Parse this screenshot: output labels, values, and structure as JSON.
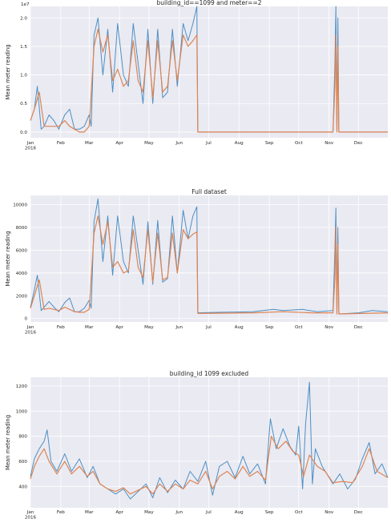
{
  "colors": {
    "background": "#eaeaf2",
    "grid": "#ffffff",
    "series_raw": "#4c8fc4",
    "series_smooth": "#dd8452"
  },
  "chart_data": [
    {
      "type": "line",
      "title": "building_id==1099 and meter==2",
      "ylabel": "Mean meter reading",
      "y_multiplier": "1e7",
      "xlim": [
        "2016-01-01",
        "2016-12-31"
      ],
      "ylim": [
        -0.1,
        2.2
      ],
      "yticks": [
        0.0,
        0.5,
        1.0,
        1.5,
        2.0
      ],
      "ytick_labels": [
        "0.0",
        "0.5",
        "1.0",
        "1.5",
        "2.0"
      ],
      "xtick_labels": [
        "Jan\n2016",
        "Feb",
        "Mar",
        "Apr",
        "May",
        "Jun",
        "Jul",
        "Aug",
        "Sep",
        "Oct",
        "Nov",
        "Dec"
      ],
      "grid": true,
      "series": [
        {
          "role": "raw hourly",
          "color": "#4c8fc4",
          "x": [
            "2016-01-01",
            "2016-01-05",
            "2016-01-08",
            "2016-01-12",
            "2016-01-15",
            "2016-01-20",
            "2016-01-25",
            "2016-01-30",
            "2016-02-05",
            "2016-02-10",
            "2016-02-15",
            "2016-02-20",
            "2016-02-25",
            "2016-03-01",
            "2016-03-03",
            "2016-03-06",
            "2016-03-10",
            "2016-03-15",
            "2016-03-20",
            "2016-03-25",
            "2016-03-30",
            "2016-04-05",
            "2016-04-10",
            "2016-04-15",
            "2016-04-20",
            "2016-04-25",
            "2016-04-30",
            "2016-05-05",
            "2016-05-10",
            "2016-05-15",
            "2016-05-20",
            "2016-05-25",
            "2016-05-30",
            "2016-06-05",
            "2016-06-10",
            "2016-06-15",
            "2016-06-19",
            "2016-06-20",
            "2016-07-15",
            "2016-08-15",
            "2016-09-15",
            "2016-10-15",
            "2016-11-05",
            "2016-11-07",
            "2016-11-08",
            "2016-11-09",
            "2016-11-10",
            "2016-11-11",
            "2016-11-12",
            "2016-12-31"
          ],
          "y": [
            0.2,
            0.4,
            0.8,
            0.05,
            0.1,
            0.3,
            0.2,
            0.05,
            0.3,
            0.4,
            0.05,
            0.05,
            0.1,
            0.3,
            0.1,
            1.7,
            2.0,
            1.0,
            1.8,
            0.7,
            1.9,
            1.0,
            0.8,
            1.9,
            1.2,
            0.5,
            1.8,
            0.5,
            1.8,
            0.6,
            0.7,
            1.8,
            0.8,
            1.9,
            1.6,
            1.9,
            2.2,
            0.0,
            0.0,
            0.0,
            0.0,
            0.0,
            0.0,
            1.2,
            2.2,
            0.0,
            2.0,
            0.0,
            0.0,
            0.0
          ]
        },
        {
          "role": "rolling mean",
          "color": "#dd8452",
          "x": [
            "2016-01-01",
            "2016-01-05",
            "2016-01-10",
            "2016-01-15",
            "2016-01-20",
            "2016-01-25",
            "2016-01-30",
            "2016-02-05",
            "2016-02-10",
            "2016-02-15",
            "2016-02-20",
            "2016-02-25",
            "2016-03-01",
            "2016-03-06",
            "2016-03-10",
            "2016-03-15",
            "2016-03-20",
            "2016-03-25",
            "2016-03-30",
            "2016-04-05",
            "2016-04-10",
            "2016-04-15",
            "2016-04-20",
            "2016-04-25",
            "2016-04-30",
            "2016-05-05",
            "2016-05-10",
            "2016-05-15",
            "2016-05-20",
            "2016-05-25",
            "2016-05-30",
            "2016-06-05",
            "2016-06-10",
            "2016-06-15",
            "2016-06-19",
            "2016-06-20",
            "2016-11-05",
            "2016-11-07",
            "2016-11-08",
            "2016-11-09",
            "2016-11-10",
            "2016-11-11",
            "2016-12-31"
          ],
          "y": [
            0.2,
            0.4,
            0.7,
            0.1,
            0.1,
            0.1,
            0.1,
            0.2,
            0.1,
            0.05,
            0.0,
            0.0,
            0.1,
            1.5,
            1.8,
            1.4,
            1.7,
            0.9,
            1.1,
            0.8,
            0.9,
            1.6,
            0.9,
            0.7,
            1.6,
            0.6,
            1.6,
            0.7,
            0.8,
            1.6,
            0.9,
            1.7,
            1.5,
            1.6,
            1.7,
            0.0,
            0.0,
            0.8,
            1.7,
            0.0,
            1.5,
            0.0,
            0.0
          ]
        }
      ]
    },
    {
      "type": "line",
      "title": "Full dataset",
      "ylabel": "Mean meter reading",
      "xlim": [
        "2016-01-01",
        "2016-12-31"
      ],
      "ylim": [
        -300,
        10800
      ],
      "yticks": [
        0,
        2000,
        4000,
        6000,
        8000,
        10000
      ],
      "ytick_labels": [
        "0",
        "2000",
        "4000",
        "6000",
        "8000",
        "10000"
      ],
      "xtick_labels": [
        "Jan\n2016",
        "Feb",
        "Mar",
        "Apr",
        "May",
        "Jun",
        "Jul",
        "Aug",
        "Sep",
        "Oct",
        "Nov",
        "Dec"
      ],
      "grid": true,
      "series": [
        {
          "role": "raw hourly",
          "color": "#4c8fc4",
          "x": [
            "2016-01-01",
            "2016-01-05",
            "2016-01-08",
            "2016-01-12",
            "2016-01-15",
            "2016-01-20",
            "2016-01-25",
            "2016-01-30",
            "2016-02-05",
            "2016-02-10",
            "2016-02-15",
            "2016-02-20",
            "2016-02-25",
            "2016-03-01",
            "2016-03-03",
            "2016-03-06",
            "2016-03-10",
            "2016-03-15",
            "2016-03-20",
            "2016-03-25",
            "2016-03-30",
            "2016-04-05",
            "2016-04-10",
            "2016-04-15",
            "2016-04-20",
            "2016-04-25",
            "2016-04-30",
            "2016-05-05",
            "2016-05-10",
            "2016-05-15",
            "2016-05-20",
            "2016-05-25",
            "2016-05-30",
            "2016-06-05",
            "2016-06-10",
            "2016-06-15",
            "2016-06-19",
            "2016-06-20",
            "2016-07-15",
            "2016-08-15",
            "2016-09-05",
            "2016-09-15",
            "2016-10-05",
            "2016-10-20",
            "2016-11-05",
            "2016-11-07",
            "2016-11-08",
            "2016-11-09",
            "2016-11-10",
            "2016-11-11",
            "2016-11-12",
            "2016-12-01",
            "2016-12-15",
            "2016-12-31"
          ],
          "y": [
            1000,
            2500,
            3800,
            700,
            1000,
            1500,
            1000,
            600,
            1400,
            1800,
            600,
            600,
            900,
            1600,
            900,
            8500,
            10500,
            5000,
            9000,
            3800,
            9000,
            5000,
            4000,
            9000,
            6000,
            3000,
            8500,
            3000,
            8600,
            3200,
            3500,
            9000,
            4000,
            9500,
            7000,
            9000,
            9800,
            500,
            550,
            600,
            800,
            700,
            800,
            600,
            700,
            6000,
            9700,
            400,
            8000,
            500,
            400,
            500,
            700,
            600
          ]
        },
        {
          "role": "rolling mean",
          "color": "#dd8452",
          "x": [
            "2016-01-01",
            "2016-01-05",
            "2016-01-10",
            "2016-01-15",
            "2016-01-20",
            "2016-01-25",
            "2016-01-30",
            "2016-02-05",
            "2016-02-10",
            "2016-02-15",
            "2016-02-20",
            "2016-02-25",
            "2016-03-01",
            "2016-03-06",
            "2016-03-10",
            "2016-03-15",
            "2016-03-20",
            "2016-03-25",
            "2016-03-30",
            "2016-04-05",
            "2016-04-10",
            "2016-04-15",
            "2016-04-20",
            "2016-04-25",
            "2016-04-30",
            "2016-05-05",
            "2016-05-10",
            "2016-05-15",
            "2016-05-20",
            "2016-05-25",
            "2016-05-30",
            "2016-06-05",
            "2016-06-10",
            "2016-06-15",
            "2016-06-19",
            "2016-06-20",
            "2016-08-15",
            "2016-09-15",
            "2016-10-15",
            "2016-11-05",
            "2016-11-07",
            "2016-11-08",
            "2016-11-09",
            "2016-11-10",
            "2016-11-11",
            "2016-12-31"
          ],
          "y": [
            900,
            2000,
            3400,
            800,
            900,
            800,
            700,
            1000,
            800,
            600,
            550,
            550,
            800,
            7500,
            9000,
            6500,
            8500,
            4500,
            5000,
            4000,
            4200,
            7800,
            4500,
            3600,
            7800,
            3200,
            7500,
            3400,
            3600,
            7500,
            4000,
            7800,
            7000,
            7400,
            7600,
            450,
            500,
            600,
            500,
            500,
            3500,
            8000,
            400,
            6500,
            400,
            500
          ]
        }
      ]
    },
    {
      "type": "line",
      "title": "building_id 1099 excluded",
      "ylabel": "Mean meter reading",
      "xlim": [
        "2016-01-01",
        "2016-12-31"
      ],
      "ylim": [
        230,
        1270
      ],
      "yticks": [
        400,
        600,
        800,
        1000,
        1200
      ],
      "ytick_labels": [
        "400",
        "600",
        "800",
        "1000",
        "1200"
      ],
      "xtick_labels": [
        "Jan\n2016",
        "Feb",
        "Mar",
        "Apr",
        "May",
        "Jun",
        "Jul",
        "Aug",
        "Sep",
        "Oct",
        "Nov",
        "Dec"
      ],
      "grid": true,
      "series": [
        {
          "role": "raw hourly",
          "color": "#4c8fc4",
          "x": [
            "2016-01-01",
            "2016-01-05",
            "2016-01-10",
            "2016-01-15",
            "2016-01-18",
            "2016-01-22",
            "2016-01-28",
            "2016-02-05",
            "2016-02-12",
            "2016-02-20",
            "2016-02-28",
            "2016-03-05",
            "2016-03-12",
            "2016-03-20",
            "2016-03-28",
            "2016-04-05",
            "2016-04-12",
            "2016-04-20",
            "2016-04-28",
            "2016-05-05",
            "2016-05-12",
            "2016-05-20",
            "2016-05-28",
            "2016-06-05",
            "2016-06-12",
            "2016-06-20",
            "2016-06-28",
            "2016-07-05",
            "2016-07-12",
            "2016-07-20",
            "2016-07-28",
            "2016-08-05",
            "2016-08-12",
            "2016-08-20",
            "2016-08-28",
            "2016-09-02",
            "2016-09-08",
            "2016-09-15",
            "2016-09-22",
            "2016-09-28",
            "2016-10-01",
            "2016-10-05",
            "2016-10-08",
            "2016-10-12",
            "2016-10-15",
            "2016-10-18",
            "2016-10-25",
            "2016-11-05",
            "2016-11-12",
            "2016-11-20",
            "2016-11-28",
            "2016-12-05",
            "2016-12-12",
            "2016-12-18",
            "2016-12-25",
            "2016-12-31"
          ],
          "y": [
            480,
            620,
            700,
            760,
            850,
            600,
            520,
            660,
            520,
            620,
            470,
            560,
            420,
            380,
            340,
            380,
            300,
            360,
            420,
            310,
            470,
            350,
            450,
            380,
            520,
            440,
            600,
            330,
            560,
            600,
            470,
            640,
            500,
            580,
            420,
            940,
            700,
            860,
            720,
            650,
            880,
            380,
            900,
            1230,
            420,
            700,
            560,
            420,
            500,
            380,
            460,
            620,
            750,
            500,
            580,
            470
          ]
        },
        {
          "role": "rolling mean",
          "color": "#dd8452",
          "x": [
            "2016-01-01",
            "2016-01-05",
            "2016-01-10",
            "2016-01-15",
            "2016-01-20",
            "2016-01-28",
            "2016-02-05",
            "2016-02-12",
            "2016-02-20",
            "2016-02-28",
            "2016-03-05",
            "2016-03-12",
            "2016-03-20",
            "2016-03-28",
            "2016-04-05",
            "2016-04-12",
            "2016-04-20",
            "2016-04-28",
            "2016-05-05",
            "2016-05-12",
            "2016-05-20",
            "2016-05-28",
            "2016-06-05",
            "2016-06-12",
            "2016-06-20",
            "2016-06-28",
            "2016-07-05",
            "2016-07-12",
            "2016-07-20",
            "2016-07-28",
            "2016-08-05",
            "2016-08-12",
            "2016-08-20",
            "2016-08-28",
            "2016-09-03",
            "2016-09-10",
            "2016-09-18",
            "2016-09-25",
            "2016-10-01",
            "2016-10-06",
            "2016-10-12",
            "2016-10-20",
            "2016-10-28",
            "2016-11-05",
            "2016-11-15",
            "2016-11-25",
            "2016-12-05",
            "2016-12-12",
            "2016-12-20",
            "2016-12-31"
          ],
          "y": [
            460,
            560,
            640,
            700,
            600,
            500,
            600,
            500,
            560,
            480,
            520,
            420,
            380,
            360,
            390,
            340,
            370,
            400,
            340,
            420,
            360,
            420,
            380,
            450,
            420,
            520,
            380,
            480,
            520,
            460,
            560,
            480,
            520,
            450,
            800,
            700,
            760,
            680,
            650,
            480,
            650,
            560,
            520,
            430,
            440,
            430,
            560,
            700,
            520,
            470
          ]
        }
      ]
    }
  ]
}
